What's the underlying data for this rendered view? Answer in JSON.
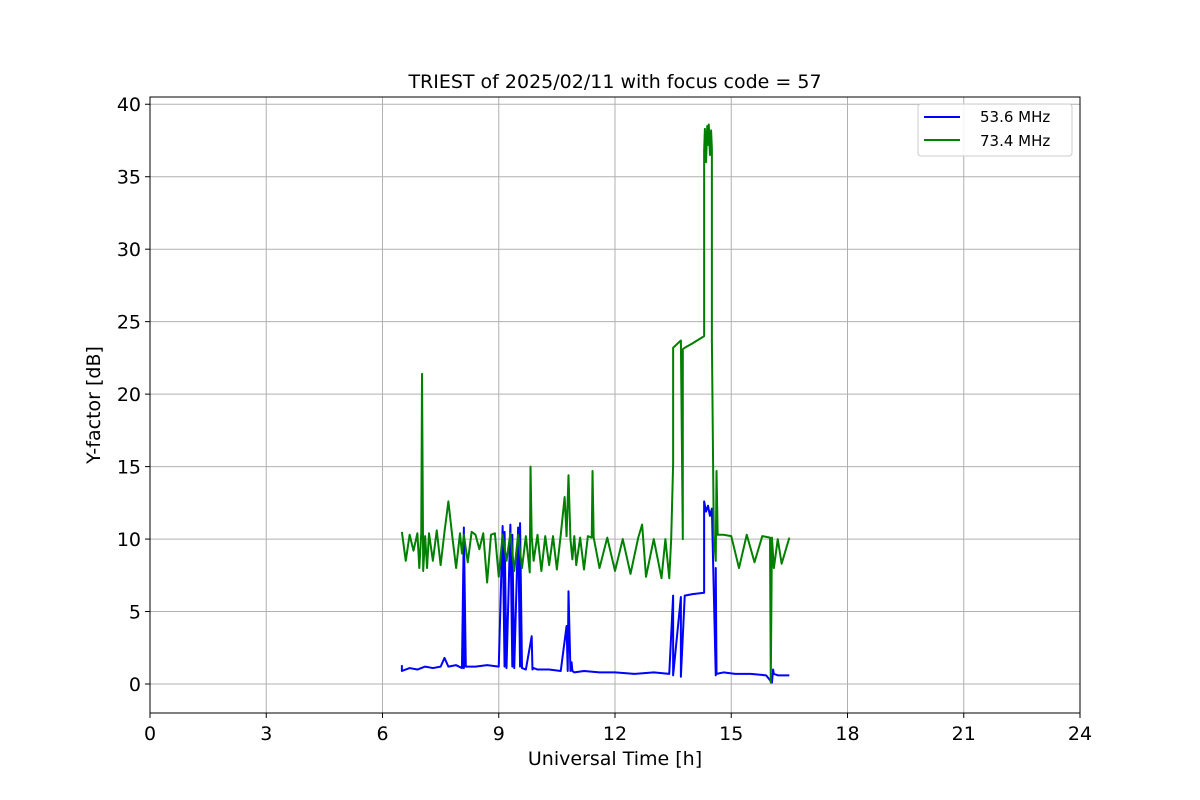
{
  "chart_data": {
    "type": "line",
    "title": "TRIEST of 2025/02/11 with focus code = 57",
    "xlabel": "Universal Time [h]",
    "ylabel": "Y-factor [dB]",
    "xlim": [
      0,
      24
    ],
    "ylim": [
      -2,
      40.5
    ],
    "xticks": [
      0,
      3,
      6,
      9,
      12,
      15,
      18,
      21,
      24
    ],
    "yticks": [
      0,
      5,
      10,
      15,
      20,
      25,
      30,
      35,
      40
    ],
    "grid": true,
    "legend_position": "top-right",
    "series": [
      {
        "name": "53.6 MHz",
        "color": "#0000ff",
        "x": [
          6.5,
          6.5,
          6.7,
          6.9,
          7.1,
          7.3,
          7.5,
          7.6,
          7.7,
          7.9,
          8.05,
          8.1,
          8.1,
          8.1,
          8.15,
          8.4,
          8.7,
          9.0,
          9.1,
          9.15,
          9.15,
          9.2,
          9.3,
          9.35,
          9.35,
          9.4,
          9.5,
          9.55,
          9.55,
          9.6,
          9.7,
          9.85,
          9.87,
          9.9,
          10.0,
          10.3,
          10.6,
          10.75,
          10.78,
          10.8,
          10.85,
          10.88,
          10.9,
          10.95,
          11.2,
          11.6,
          12.0,
          12.5,
          13.0,
          13.4,
          13.5,
          13.5,
          13.7,
          13.7,
          13.8,
          14.0,
          14.3,
          14.3,
          14.35,
          14.4,
          14.45,
          14.5,
          14.55,
          14.6,
          14.6,
          14.62,
          14.8,
          15.1,
          15.5,
          15.9,
          16.05,
          16.08,
          16.1,
          16.2,
          16.5
        ],
        "values": [
          1.3,
          0.9,
          1.1,
          1.0,
          1.2,
          1.1,
          1.2,
          1.8,
          1.2,
          1.3,
          1.1,
          10.8,
          1.1,
          10.5,
          1.2,
          1.2,
          1.3,
          1.2,
          10.9,
          1.2,
          10.5,
          1.1,
          11.0,
          1.2,
          10.3,
          1.1,
          10.8,
          1.2,
          11.1,
          1.1,
          1.0,
          3.3,
          1.0,
          1.1,
          1.0,
          1.0,
          0.9,
          4.0,
          0.9,
          6.4,
          0.9,
          1.5,
          0.9,
          0.8,
          0.9,
          0.8,
          0.8,
          0.7,
          0.8,
          0.7,
          6.1,
          0.6,
          6.0,
          0.5,
          6.1,
          6.2,
          6.3,
          12.6,
          11.9,
          12.3,
          11.6,
          12.1,
          6.3,
          0.6,
          8.0,
          0.7,
          0.8,
          0.7,
          0.7,
          0.6,
          0.1,
          1.0,
          0.7,
          0.6,
          0.6
        ]
      },
      {
        "name": "73.4 MHz",
        "color": "#008000",
        "x": [
          6.5,
          6.6,
          6.7,
          6.8,
          6.9,
          6.95,
          7.0,
          7.02,
          7.05,
          7.1,
          7.15,
          7.2,
          7.3,
          7.4,
          7.5,
          7.6,
          7.7,
          7.8,
          7.9,
          8.0,
          8.05,
          8.1,
          8.2,
          8.3,
          8.4,
          8.5,
          8.6,
          8.7,
          8.8,
          8.9,
          9.0,
          9.1,
          9.2,
          9.3,
          9.4,
          9.5,
          9.6,
          9.7,
          9.8,
          9.82,
          9.85,
          9.9,
          10.0,
          10.1,
          10.2,
          10.3,
          10.4,
          10.5,
          10.6,
          10.7,
          10.75,
          10.8,
          10.85,
          10.9,
          10.95,
          11.0,
          11.1,
          11.2,
          11.3,
          11.4,
          11.42,
          11.45,
          11.6,
          11.8,
          12.0,
          12.2,
          12.4,
          12.6,
          12.7,
          12.8,
          13.0,
          13.2,
          13.3,
          13.4,
          13.45,
          13.5,
          13.5,
          13.7,
          13.75,
          13.75,
          13.8,
          14.0,
          14.3,
          14.3,
          14.32,
          14.35,
          14.38,
          14.4,
          14.42,
          14.45,
          14.48,
          14.5,
          14.5,
          14.55,
          14.6,
          14.62,
          14.65,
          14.8,
          15.0,
          15.2,
          15.4,
          15.6,
          15.8,
          16.0,
          16.02,
          16.05,
          16.1,
          16.2,
          16.3,
          16.5
        ],
        "values": [
          10.5,
          8.5,
          10.3,
          9.2,
          10.4,
          8.0,
          10.4,
          21.4,
          7.8,
          10.2,
          8.0,
          10.4,
          8.5,
          10.6,
          8.2,
          10.5,
          12.6,
          10.2,
          8.0,
          10.4,
          9.0,
          10.3,
          8.4,
          10.5,
          10.3,
          9.3,
          10.4,
          7.0,
          10.3,
          10.4,
          7.4,
          10.3,
          8.5,
          10.4,
          7.8,
          10.3,
          8.0,
          10.2,
          7.7,
          15.0,
          10.2,
          8.5,
          10.3,
          7.8,
          10.2,
          8.2,
          10.2,
          7.9,
          10.3,
          12.9,
          10.2,
          14.4,
          10.0,
          8.6,
          10.2,
          8.2,
          10.1,
          7.9,
          10.2,
          10.1,
          14.7,
          10.1,
          8.0,
          10.1,
          7.8,
          10.0,
          7.6,
          10.1,
          11.0,
          7.4,
          10.0,
          7.3,
          10.0,
          7.3,
          10.0,
          15.2,
          23.2,
          23.7,
          10.0,
          23.1,
          23.2,
          23.5,
          24.0,
          36.8,
          38.3,
          36.0,
          38.5,
          37.2,
          38.6,
          36.5,
          38.2,
          36.9,
          23.8,
          10.2,
          8.5,
          14.7,
          10.3,
          10.3,
          10.2,
          8.0,
          10.3,
          8.4,
          10.2,
          10.1,
          0.1,
          10.1,
          8.0,
          10.0,
          8.3,
          10.1
        ]
      }
    ]
  }
}
